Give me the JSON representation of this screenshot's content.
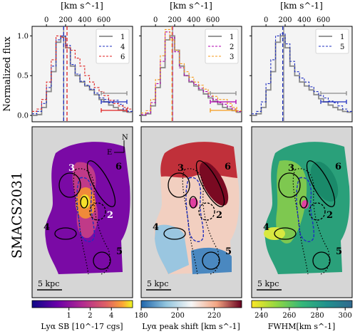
{
  "side_label": "SMACS2031",
  "chart_data": [
    {
      "type": "line",
      "panel": "spectrum-left",
      "top_axis_label": "[km s^-1]",
      "top_ticks": [
        0,
        200,
        400,
        600
      ],
      "ylabel": "Normalized flux",
      "yticks": [
        "0.0",
        "0.5",
        "1.0"
      ],
      "xlim": [
        -150,
        900
      ],
      "ylim": [
        -0.08,
        1.12
      ],
      "bin_edges": [
        -150,
        -100,
        -50,
        0,
        50,
        100,
        150,
        200,
        250,
        300,
        350,
        400,
        450,
        500,
        550,
        600,
        650,
        700,
        750,
        800,
        850,
        900
      ],
      "series": [
        {
          "name": "1",
          "color": "#8a8a8a",
          "dash": "solid",
          "values": [
            0.0,
            0.01,
            0.1,
            0.3,
            0.55,
            0.92,
            0.99,
            0.85,
            0.62,
            0.5,
            0.42,
            0.37,
            0.32,
            0.26,
            0.2,
            0.17,
            0.13,
            0.1,
            0.07,
            0.05,
            0.04
          ],
          "peak": 180
        },
        {
          "name": "4",
          "color": "#1f2fbf",
          "dash": "dashed",
          "values": [
            0.02,
            0.05,
            0.15,
            0.35,
            0.62,
            0.95,
            1.0,
            0.88,
            0.64,
            0.52,
            0.43,
            0.38,
            0.33,
            0.28,
            0.22,
            0.2,
            0.16,
            0.19,
            0.14,
            0.08,
            0.05
          ],
          "peak": 180
        },
        {
          "name": "6",
          "color": "#e02020",
          "dash": "dashed",
          "values": [
            0.05,
            0.08,
            0.2,
            0.42,
            0.7,
            1.0,
            0.98,
            0.85,
            0.82,
            0.72,
            0.62,
            0.5,
            0.42,
            0.35,
            0.3,
            0.25,
            0.19,
            0.15,
            0.12,
            0.1,
            0.08
          ],
          "peak": 215
        }
      ],
      "legend": "top-right"
    },
    {
      "type": "line",
      "panel": "spectrum-middle",
      "top_axis_label": "[km s^-1]",
      "top_ticks": [
        0,
        200,
        400,
        600
      ],
      "xlim": [
        -150,
        900
      ],
      "ylim": [
        -0.08,
        1.12
      ],
      "bin_edges": [
        -150,
        -100,
        -50,
        0,
        50,
        100,
        150,
        200,
        250,
        300,
        350,
        400,
        450,
        500,
        550,
        600,
        650,
        700,
        750,
        800,
        850,
        900
      ],
      "series": [
        {
          "name": "1",
          "color": "#8a8a8a",
          "dash": "solid",
          "values": [
            0.0,
            0.02,
            0.12,
            0.35,
            0.6,
            0.95,
            1.0,
            0.82,
            0.62,
            0.5,
            0.42,
            0.37,
            0.32,
            0.27,
            0.22,
            0.18,
            0.14,
            0.1,
            0.08,
            0.06,
            0.04
          ],
          "peak": 178
        },
        {
          "name": "2",
          "color": "#b000b0",
          "dash": "dashed",
          "values": [
            0.01,
            0.03,
            0.16,
            0.4,
            0.68,
            1.05,
            0.98,
            0.8,
            0.6,
            0.5,
            0.43,
            0.39,
            0.34,
            0.3,
            0.24,
            0.2,
            0.16,
            0.14,
            0.11,
            0.08,
            0.05
          ],
          "peak": 178
        },
        {
          "name": "3",
          "color": "#f59a1a",
          "dash": "dashed",
          "values": [
            0.03,
            0.06,
            0.2,
            0.45,
            0.75,
            1.08,
            0.95,
            0.82,
            0.65,
            0.55,
            0.48,
            0.42,
            0.38,
            0.33,
            0.28,
            0.24,
            0.2,
            0.2,
            0.15,
            0.1,
            0.06
          ],
          "peak": 172
        }
      ],
      "legend": "top-right"
    },
    {
      "type": "line",
      "panel": "spectrum-right",
      "top_axis_label": "[km s^-1]",
      "top_ticks": [
        0,
        200,
        400,
        600
      ],
      "xlim": [
        -150,
        900
      ],
      "ylim": [
        -0.08,
        1.12
      ],
      "bin_edges": [
        -150,
        -100,
        -50,
        0,
        50,
        100,
        150,
        200,
        250,
        300,
        350,
        400,
        450,
        500,
        550,
        600,
        650,
        700,
        750,
        800,
        850,
        900
      ],
      "series": [
        {
          "name": "1",
          "color": "#8a8a8a",
          "dash": "solid",
          "values": [
            0.0,
            0.02,
            0.1,
            0.32,
            0.55,
            0.92,
            1.0,
            0.85,
            0.62,
            0.5,
            0.42,
            0.37,
            0.32,
            0.26,
            0.21,
            0.17,
            0.13,
            0.1,
            0.07,
            0.05,
            0.04
          ],
          "peak": 185
        },
        {
          "name": "5",
          "color": "#1f2fbf",
          "dash": "dashed",
          "values": [
            0.02,
            0.05,
            0.17,
            0.4,
            0.7,
            1.0,
            1.03,
            0.9,
            0.68,
            0.55,
            0.47,
            0.42,
            0.36,
            0.3,
            0.25,
            0.22,
            0.18,
            0.16,
            0.12,
            0.08,
            0.05
          ],
          "peak": 175
        }
      ],
      "legend": "top-right"
    },
    {
      "type": "heatmap",
      "panel": "map-left",
      "colorbar_label": "Lyα SB [10^-17 cgs]",
      "colorbar_ticks": [
        "1",
        "2",
        "4"
      ],
      "colormap": "plasma",
      "compass": {
        "north": "N",
        "east": "E"
      },
      "scalebar_label": "5 kpc",
      "regions": [
        "3",
        "6",
        "1",
        "2",
        "4",
        "5"
      ]
    },
    {
      "type": "heatmap",
      "panel": "map-middle",
      "colorbar_label": "Lyα peak shift [km s^-1]",
      "colorbar_ticks": [
        "180",
        "200",
        "220"
      ],
      "colorbar_range": [
        180,
        235
      ],
      "colormap": "RdBu",
      "scalebar_label": "5 kpc",
      "regions": [
        "3",
        "6",
        "1",
        "2",
        "4",
        "5"
      ]
    },
    {
      "type": "heatmap",
      "panel": "map-right",
      "colorbar_label": "FWHM[km s^-1]",
      "colorbar_ticks": [
        "240",
        "260",
        "280",
        "300"
      ],
      "colorbar_range": [
        233,
        305
      ],
      "colormap": "viridis",
      "scalebar_label": "5 kpc",
      "regions": [
        "3",
        "6",
        "1",
        "2",
        "4",
        "5"
      ]
    }
  ]
}
